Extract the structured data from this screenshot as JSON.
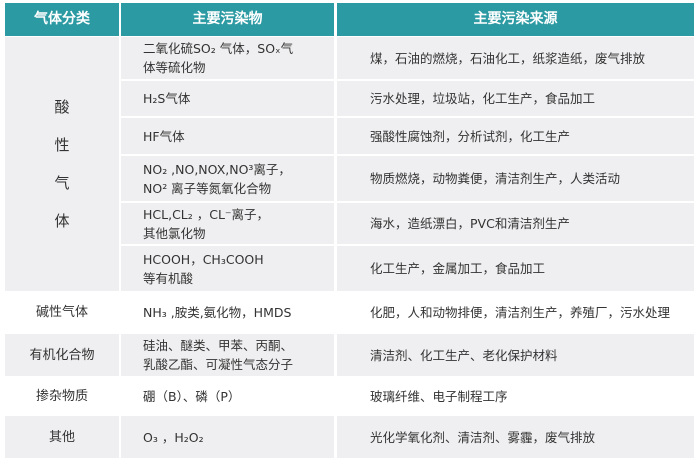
{
  "header": {
    "category": "气体分类",
    "pollutant": "主要污染物",
    "source": "主要污染来源"
  },
  "colors": {
    "header_bg": "#2b9aa3",
    "row_gray": "#efeff1"
  },
  "groups": [
    {
      "category": "酸性气体",
      "vertical_chars": [
        "酸",
        "性",
        "气",
        "体"
      ],
      "shaded": true,
      "rows": [
        {
          "pollutant": "二氧化硫SO₂ 气体，SOₓ气\n体等硫化物",
          "source": "煤，石油的燃烧，石油化工，纸浆造纸，废气排放"
        },
        {
          "pollutant": "H₂S气体",
          "source": "污水处理，垃圾站，化工生产，食品加工"
        },
        {
          "pollutant": "HF气体",
          "source": "强酸性腐蚀剂，分析试剂，化工生产"
        },
        {
          "pollutant": "NO₂ ,NO,NOX,NO³离子，\nNO² 离子等氮氧化合物",
          "source": "物质燃烧，动物粪便，清洁剂生产，人类活动"
        },
        {
          "pollutant": "HCL,CL₂ ，CL⁻离子，\n其他氯化物",
          "source": "海水，造纸漂白，PVC和清洁剂生产"
        },
        {
          "pollutant": "HCOOH，CH₃COOH\n等有机酸",
          "source": "化工生产，金属加工，食品加工"
        }
      ]
    },
    {
      "category": "碱性气体",
      "shaded": false,
      "rows": [
        {
          "pollutant": "NH₃ ,胺类,氨化物，HMDS",
          "source": "化肥，人和动物排便，清洁剂生产，养殖厂，污水处理"
        }
      ]
    },
    {
      "category": "有机化合物",
      "shaded": true,
      "rows": [
        {
          "pollutant": "硅油、醚类、甲苯、丙酮、\n乳酸乙酯、可凝性气态分子",
          "source": "清洁剂、化工生产、老化保护材料"
        }
      ]
    },
    {
      "category": "掺杂物质",
      "shaded": false,
      "rows": [
        {
          "pollutant": "硼（B）、磷（P）",
          "source": "玻璃纤维、电子制程工序"
        }
      ]
    },
    {
      "category": "其他",
      "shaded": true,
      "rows": [
        {
          "pollutant": "O₃ ，H₂O₂",
          "source": "光化学氧化剂、清洁剂、雾霾，废气排放"
        }
      ]
    }
  ]
}
